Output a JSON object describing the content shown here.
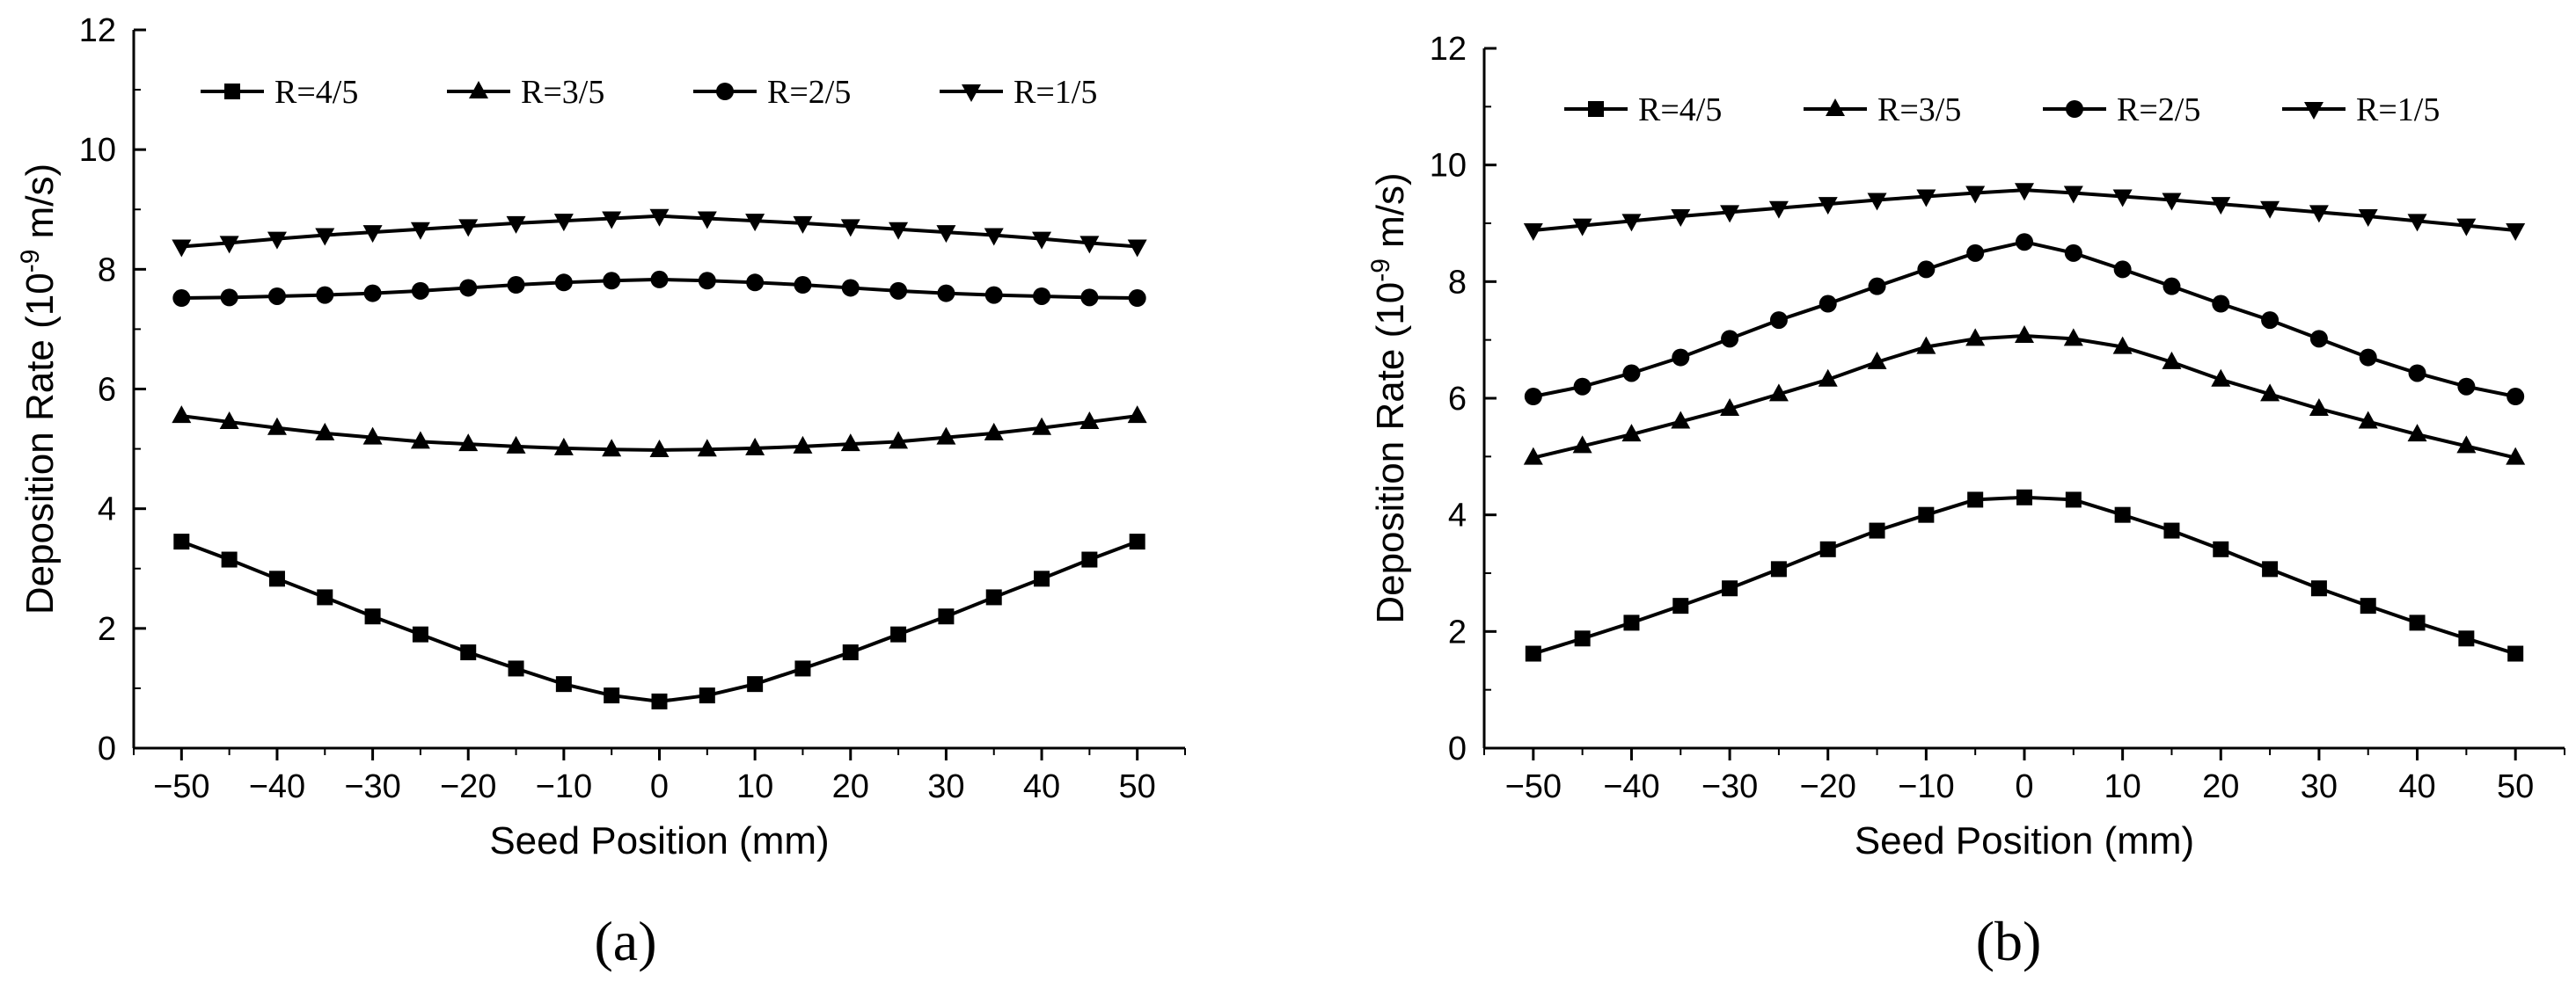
{
  "chart_data": [
    {
      "type": "line",
      "panel_label": "(a)",
      "xlabel": "Seed Position (mm)",
      "ylabel": "Deposition Rate (10",
      "ylabel_exp": "-9",
      "ylabel_unit": " m/s)",
      "xlim": [
        -55,
        55
      ],
      "ylim": [
        0,
        12
      ],
      "xticks": [
        -50,
        -40,
        -30,
        -20,
        -10,
        0,
        10,
        20,
        30,
        40,
        50
      ],
      "yticks": [
        0,
        2,
        4,
        6,
        8,
        10,
        12
      ],
      "xtick_labels": [
        "−50",
        "−40",
        "−30",
        "−20",
        "−10",
        "0",
        "10",
        "20",
        "30",
        "40",
        "50"
      ],
      "ytick_labels": [
        "0",
        "2",
        "4",
        "6",
        "8",
        "10",
        "12"
      ],
      "legend_position": "top",
      "x": [
        -50,
        -45,
        -40,
        -35,
        -30,
        -25,
        -20,
        -15,
        -10,
        -5,
        0,
        5,
        10,
        15,
        20,
        25,
        30,
        35,
        40,
        45,
        50
      ],
      "series": [
        {
          "name": "R=4/5",
          "marker": "square",
          "values": [
            3.45,
            3.15,
            2.83,
            2.52,
            2.2,
            1.9,
            1.6,
            1.33,
            1.07,
            0.88,
            0.78,
            0.88,
            1.07,
            1.33,
            1.6,
            1.9,
            2.2,
            2.52,
            2.83,
            3.15,
            3.45
          ]
        },
        {
          "name": "R=3/5",
          "marker": "triangle-up",
          "values": [
            5.55,
            5.45,
            5.35,
            5.26,
            5.19,
            5.12,
            5.08,
            5.04,
            5.01,
            4.99,
            4.98,
            4.99,
            5.01,
            5.04,
            5.08,
            5.12,
            5.19,
            5.26,
            5.35,
            5.45,
            5.55
          ]
        },
        {
          "name": "R=2/5",
          "marker": "circle",
          "values": [
            7.52,
            7.53,
            7.55,
            7.57,
            7.6,
            7.64,
            7.69,
            7.74,
            7.78,
            7.81,
            7.83,
            7.81,
            7.78,
            7.74,
            7.69,
            7.64,
            7.6,
            7.57,
            7.55,
            7.53,
            7.52
          ]
        },
        {
          "name": "R=1/5",
          "marker": "triangle-down",
          "values": [
            8.38,
            8.44,
            8.51,
            8.57,
            8.62,
            8.67,
            8.72,
            8.77,
            8.81,
            8.85,
            8.89,
            8.85,
            8.81,
            8.77,
            8.72,
            8.67,
            8.62,
            8.57,
            8.51,
            8.44,
            8.38
          ]
        }
      ]
    },
    {
      "type": "line",
      "panel_label": "(b)",
      "xlabel": "Seed Position (mm)",
      "ylabel": "Deposition Rate (10",
      "ylabel_exp": "-9",
      "ylabel_unit": " m/s)",
      "xlim": [
        -55,
        55
      ],
      "ylim": [
        0,
        12
      ],
      "xticks": [
        -50,
        -40,
        -30,
        -20,
        -10,
        0,
        10,
        20,
        30,
        40,
        50
      ],
      "yticks": [
        0,
        2,
        4,
        6,
        8,
        10,
        12
      ],
      "xtick_labels": [
        "−50",
        "−40",
        "−30",
        "−20",
        "−10",
        "0",
        "10",
        "20",
        "30",
        "40",
        "50"
      ],
      "ytick_labels": [
        "0",
        "2",
        "4",
        "6",
        "8",
        "10",
        "12"
      ],
      "legend_position": "top",
      "x": [
        -50,
        -45,
        -40,
        -35,
        -30,
        -25,
        -20,
        -15,
        -10,
        -5,
        0,
        5,
        10,
        15,
        20,
        25,
        30,
        35,
        40,
        45,
        50
      ],
      "series": [
        {
          "name": "R=4/5",
          "marker": "square",
          "values": [
            1.62,
            1.88,
            2.15,
            2.44,
            2.74,
            3.07,
            3.41,
            3.73,
            4.0,
            4.26,
            4.3,
            4.26,
            4.0,
            3.73,
            3.41,
            3.07,
            2.74,
            2.44,
            2.15,
            1.88,
            1.62
          ]
        },
        {
          "name": "R=3/5",
          "marker": "triangle-up",
          "values": [
            4.98,
            5.18,
            5.38,
            5.6,
            5.82,
            6.07,
            6.32,
            6.62,
            6.88,
            7.02,
            7.07,
            7.02,
            6.88,
            6.62,
            6.32,
            6.07,
            5.82,
            5.6,
            5.38,
            5.18,
            4.98
          ]
        },
        {
          "name": "R=2/5",
          "marker": "circle",
          "values": [
            6.03,
            6.2,
            6.43,
            6.7,
            7.02,
            7.34,
            7.62,
            7.92,
            8.21,
            8.49,
            8.68,
            8.49,
            8.21,
            7.92,
            7.62,
            7.34,
            7.02,
            6.7,
            6.43,
            6.2,
            6.03
          ]
        },
        {
          "name": "R=1/5",
          "marker": "triangle-down",
          "values": [
            8.88,
            8.96,
            9.04,
            9.12,
            9.19,
            9.26,
            9.33,
            9.4,
            9.46,
            9.52,
            9.57,
            9.52,
            9.46,
            9.4,
            9.33,
            9.26,
            9.19,
            9.12,
            9.04,
            8.96,
            8.88
          ]
        }
      ]
    }
  ]
}
